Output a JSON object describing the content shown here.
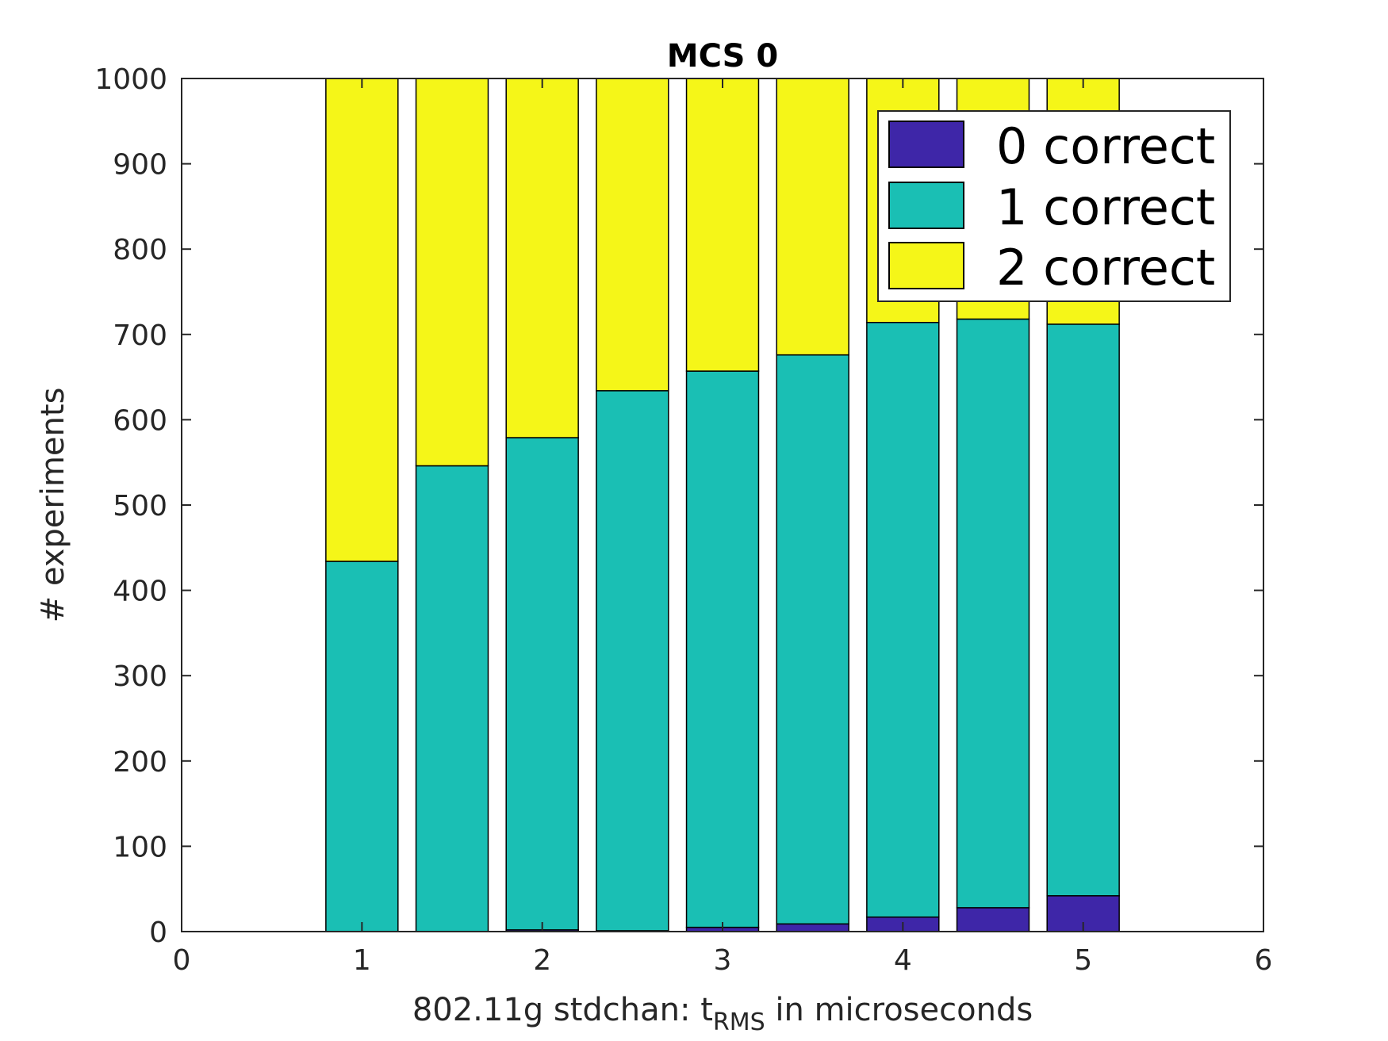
{
  "chart_data": {
    "type": "bar",
    "stacked": true,
    "title": "MCS 0",
    "xlabel_main": "802.11g stdchan: t",
    "xlabel_sub": "RMS",
    "xlabel_tail": " in microseconds",
    "ylabel": "# experiments",
    "xlim": [
      0,
      6
    ],
    "ylim": [
      0,
      1000
    ],
    "xticks": [
      "0",
      "1",
      "2",
      "3",
      "4",
      "5",
      "6"
    ],
    "yticks": [
      "0",
      "100",
      "200",
      "300",
      "400",
      "500",
      "600",
      "700",
      "800",
      "900",
      "1000"
    ],
    "x": [
      1,
      1.5,
      2,
      2.5,
      3,
      3.5,
      4,
      4.5,
      5
    ],
    "series": [
      {
        "name": "0 correct",
        "color": "#3e26a8",
        "values": [
          0,
          0,
          2,
          1,
          5,
          9,
          17,
          28,
          42
        ]
      },
      {
        "name": "1 correct",
        "color": "#1abfb4",
        "values": [
          434,
          546,
          577,
          633,
          652,
          667,
          697,
          690,
          670
        ]
      },
      {
        "name": "2 correct",
        "color": "#f5f618",
        "values": [
          566,
          454,
          421,
          366,
          343,
          324,
          286,
          282,
          288
        ]
      }
    ],
    "legend_position": "top-right",
    "grid": false
  }
}
